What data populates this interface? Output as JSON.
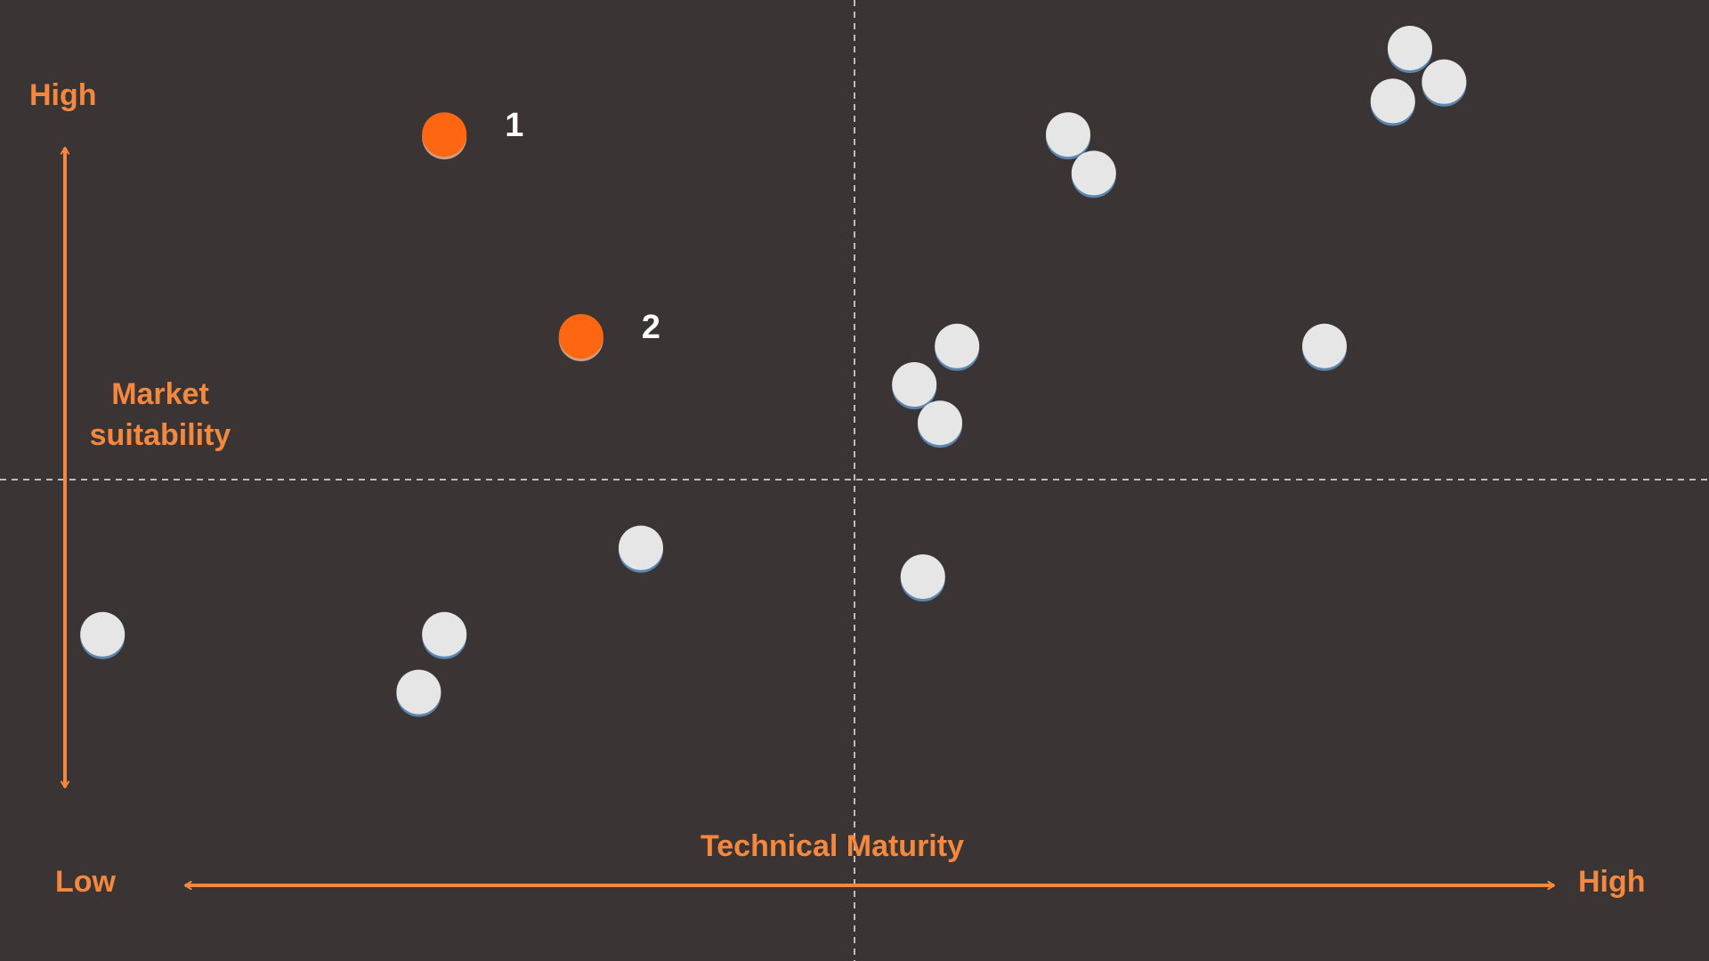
{
  "chart_data": {
    "type": "scatter",
    "title": "",
    "xlabel": "Technical Maturity",
    "ylabel": "Market suitability",
    "x_axis_ends": {
      "low": "Low",
      "high": "High"
    },
    "y_axis_ends": {
      "high": "High"
    },
    "xlim": [
      0,
      10
    ],
    "ylim": [
      0,
      10
    ],
    "quadrant_dividers": {
      "x": 5,
      "y": 5
    },
    "grid": false,
    "colors": {
      "background": "#3a3534",
      "accent": "#f5883f",
      "highlight": "#ff6611",
      "point": "#e6e6e6",
      "divider": "#bdbdbd"
    },
    "highlighted": [
      {
        "label": "1",
        "x": 2.6,
        "y": 8.6
      },
      {
        "label": "2",
        "x": 3.4,
        "y": 6.5
      }
    ],
    "points": [
      {
        "x": 0.6,
        "y": 3.4
      },
      {
        "x": 2.6,
        "y": 3.4
      },
      {
        "x": 2.45,
        "y": 2.8
      },
      {
        "x": 3.75,
        "y": 4.3
      },
      {
        "x": 5.4,
        "y": 4.0
      },
      {
        "x": 5.35,
        "y": 6.0
      },
      {
        "x": 5.6,
        "y": 6.4
      },
      {
        "x": 5.5,
        "y": 5.6
      },
      {
        "x": 6.25,
        "y": 8.6
      },
      {
        "x": 6.4,
        "y": 8.2
      },
      {
        "x": 7.75,
        "y": 6.4
      },
      {
        "x": 8.25,
        "y": 9.5
      },
      {
        "x": 8.45,
        "y": 9.15
      },
      {
        "x": 8.15,
        "y": 8.95
      }
    ]
  }
}
